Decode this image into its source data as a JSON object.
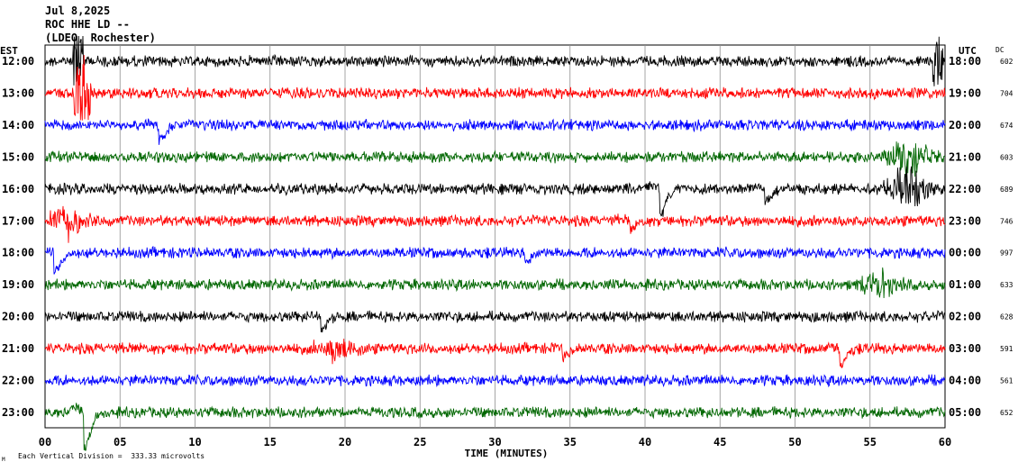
{
  "header": {
    "date": "Jul 8,2025",
    "station": "ROC HHE LD --",
    "location": "(LDEO, Rochester)"
  },
  "chart_data": {
    "type": "line",
    "title": "Jul 8,2025",
    "left_axis_label": "EST",
    "right_axis_label": "UTC",
    "dc_label": "DC",
    "xlabel": "TIME (MINUTES)",
    "xlim": [
      0,
      60
    ],
    "x_ticks": [
      "00",
      "05",
      "10",
      "15",
      "20",
      "25",
      "30",
      "35",
      "40",
      "45",
      "50",
      "55",
      "60"
    ],
    "footnote": "Each Vertical Division =  333.33 microvolts",
    "corner_mark": "M",
    "grid": true,
    "trace_colors": [
      "#000000",
      "#ff0000",
      "#0000ff",
      "#006600"
    ],
    "rows": [
      {
        "est": "12:00",
        "utc": "18:00",
        "dc": "602",
        "color": "#000000",
        "events": [
          {
            "t": 2.2,
            "a": 1.0,
            "k": "spike"
          },
          {
            "t": 59.5,
            "a": 0.9,
            "k": "spike"
          }
        ]
      },
      {
        "est": "13:00",
        "utc": "19:00",
        "dc": "704",
        "color": "#ff0000",
        "events": [
          {
            "t": 2.3,
            "a": 1.0,
            "k": "spike"
          },
          {
            "t": 2.8,
            "a": 0.9,
            "k": "spike"
          }
        ]
      },
      {
        "est": "14:00",
        "utc": "20:00",
        "dc": "674",
        "color": "#0000ff",
        "events": [
          {
            "t": 7.6,
            "a": 0.5,
            "k": "bump"
          }
        ]
      },
      {
        "est": "15:00",
        "utc": "21:00",
        "dc": "603",
        "color": "#006600",
        "events": [
          {
            "t": 57.5,
            "a": 0.9,
            "k": "burst"
          }
        ]
      },
      {
        "est": "16:00",
        "utc": "22:00",
        "dc": "689",
        "color": "#000000",
        "events": [
          {
            "t": 41.0,
            "a": 0.8,
            "k": "bump"
          },
          {
            "t": 48.0,
            "a": 0.4,
            "k": "bump"
          },
          {
            "t": 57.5,
            "a": 1.0,
            "k": "burst"
          }
        ]
      },
      {
        "est": "17:00",
        "utc": "23:00",
        "dc": "746",
        "color": "#ff0000",
        "events": [
          {
            "t": 1.5,
            "a": 0.7,
            "k": "burst"
          },
          {
            "t": 39.0,
            "a": 0.3,
            "k": "bump"
          }
        ]
      },
      {
        "est": "18:00",
        "utc": "00:00",
        "dc": "997",
        "color": "#0000ff",
        "events": [
          {
            "t": 0.6,
            "a": 0.6,
            "k": "bump"
          },
          {
            "t": 32.0,
            "a": 0.3,
            "k": "bump"
          }
        ]
      },
      {
        "est": "19:00",
        "utc": "01:00",
        "dc": "633",
        "color": "#006600",
        "events": [
          {
            "t": 55.5,
            "a": 0.6,
            "k": "burst"
          }
        ]
      },
      {
        "est": "20:00",
        "utc": "02:00",
        "dc": "628",
        "color": "#000000",
        "events": [
          {
            "t": 18.4,
            "a": 0.4,
            "k": "bump"
          }
        ]
      },
      {
        "est": "21:00",
        "utc": "03:00",
        "dc": "591",
        "color": "#ff0000",
        "events": [
          {
            "t": 19.5,
            "a": 0.5,
            "k": "burst"
          },
          {
            "t": 34.5,
            "a": 0.3,
            "k": "bump"
          },
          {
            "t": 53.0,
            "a": 0.5,
            "k": "bump"
          }
        ]
      },
      {
        "est": "22:00",
        "utc": "04:00",
        "dc": "561",
        "color": "#0000ff",
        "events": []
      },
      {
        "est": "23:00",
        "utc": "05:00",
        "dc": "652",
        "color": "#006600",
        "events": [
          {
            "t": 2.6,
            "a": 1.2,
            "k": "bump"
          }
        ]
      }
    ]
  }
}
